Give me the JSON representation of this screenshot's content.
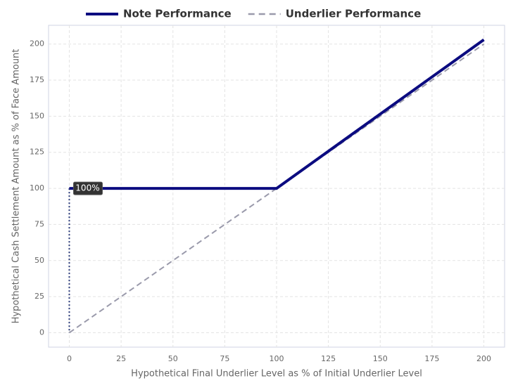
{
  "chart_data": {
    "type": "line",
    "xlabel": "Hypothetical Final Underlier Level as % of Initial Underlier Level",
    "ylabel": "Hypothetical Cash Settlement Amount as % of Face Amount",
    "series": [
      {
        "name": "Note Performance",
        "color": "#0b0b80",
        "style": "solid",
        "x": [
          0,
          100,
          200
        ],
        "values": [
          100,
          100,
          203
        ]
      },
      {
        "name": "Underlier Performance",
        "color": "#9a9aab",
        "style": "dashed",
        "x": [
          0,
          200
        ],
        "values": [
          0,
          200
        ]
      }
    ],
    "annotations": [
      {
        "text": "100%",
        "x": 0,
        "y": 100
      }
    ],
    "xlim": [
      -10,
      210
    ],
    "ylim": [
      -10,
      213
    ],
    "xticks": [
      0,
      25,
      50,
      75,
      100,
      125,
      150,
      175,
      200
    ],
    "yticks": [
      0,
      25,
      50,
      75,
      100,
      125,
      150,
      175,
      200
    ],
    "grid": true
  }
}
